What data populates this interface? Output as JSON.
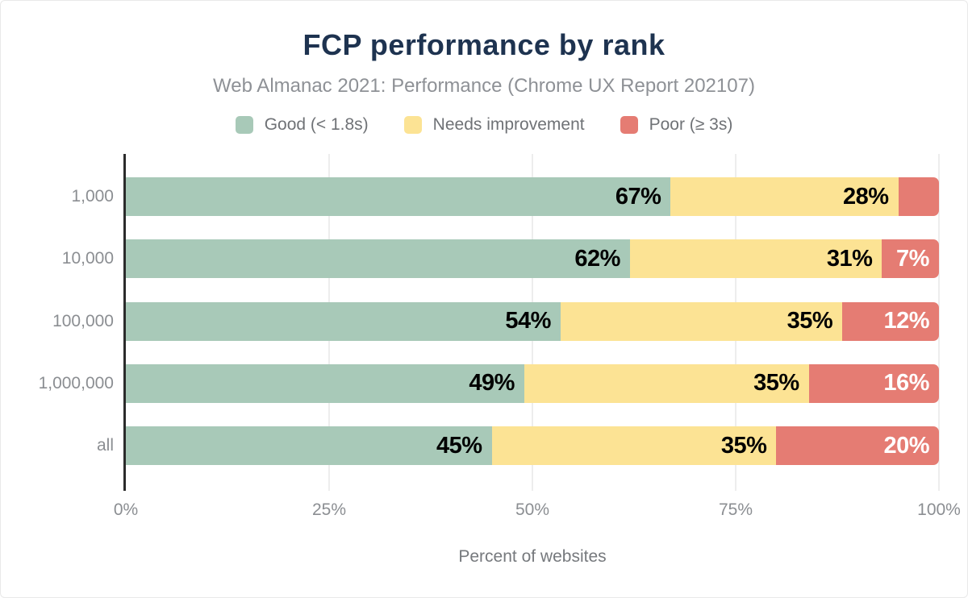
{
  "chart_data": {
    "type": "bar",
    "orientation": "horizontal",
    "stacked": true,
    "title": "FCP performance by rank",
    "subtitle": "Web Almanac 2021: Performance (Chrome UX Report 202107)",
    "categories": [
      "1,000",
      "10,000",
      "100,000",
      "1,000,000",
      "all"
    ],
    "series": [
      {
        "name": "Good (< 1.8s)",
        "color": "#a8c9b8",
        "label_color": "#000000",
        "values": [
          67,
          62,
          54,
          49,
          45
        ]
      },
      {
        "name": "Needs improvement",
        "color": "#fce394",
        "label_color": "#000000",
        "values": [
          28,
          31,
          35,
          35,
          35
        ]
      },
      {
        "name": "Poor (≥ 3s)",
        "color": "#e57c73",
        "label_color": "#ffffff",
        "values": [
          5,
          7,
          12,
          16,
          20
        ]
      }
    ],
    "value_suffix": "%",
    "min_label_value": 6,
    "xlabel": "Percent of websites",
    "xlim": [
      0,
      100
    ],
    "x_ticks": [
      {
        "label": "0%",
        "value": 0
      },
      {
        "label": "25%",
        "value": 25
      },
      {
        "label": "50%",
        "value": 50
      },
      {
        "label": "75%",
        "value": 75
      },
      {
        "label": "100%",
        "value": 100
      }
    ],
    "legend_position": "top",
    "grid": "vertical"
  },
  "colors": {
    "title": "#1e3350",
    "subtitle": "#8e9196",
    "axis_text": "#8b8e92",
    "legend_text": "#6f7276",
    "axis_line": "#2b2b2b",
    "gridline": "#ededed",
    "background": "#ffffff"
  }
}
